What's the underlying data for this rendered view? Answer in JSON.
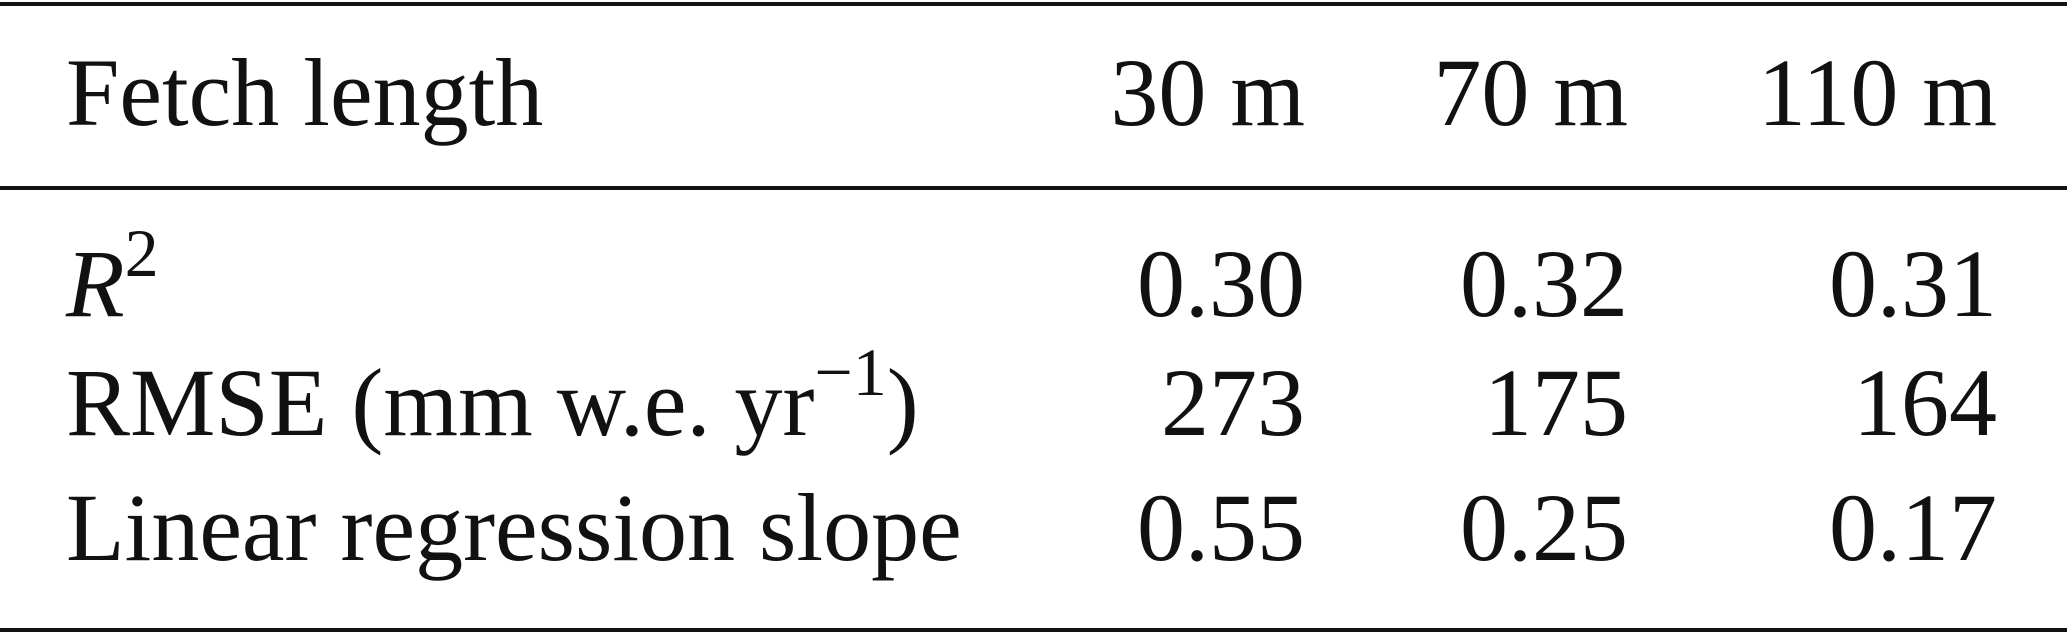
{
  "table": {
    "header": [
      "Fetch length",
      "30 m",
      "70 m",
      "110 m"
    ],
    "rows": [
      {
        "label": {
          "text": "R",
          "sup": "2"
        },
        "cells": [
          "0.30",
          "0.32",
          "0.31"
        ]
      },
      {
        "label": {
          "text": "RMSE (mm w.e. yr",
          "sup": "−1",
          "after": ")"
        },
        "cells": [
          "273",
          "175",
          "164"
        ]
      },
      {
        "label": {
          "text": "Linear regression slope"
        },
        "cells": [
          "0.55",
          "0.25",
          "0.17"
        ]
      }
    ]
  }
}
